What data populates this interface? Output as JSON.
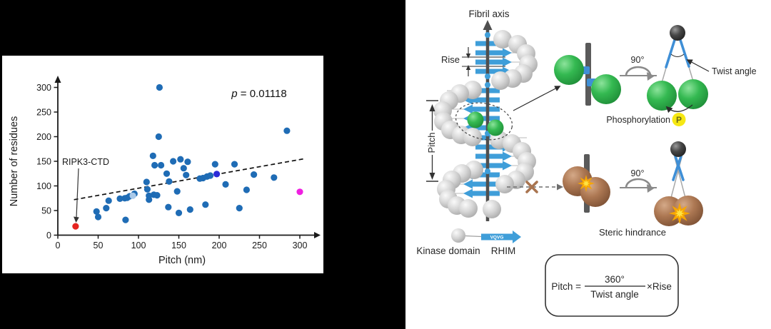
{
  "chart_data": {
    "type": "scatter",
    "title": "",
    "xlabel": "Pitch (nm)",
    "ylabel": "Number of residues",
    "xticks": [
      0,
      50,
      100,
      150,
      200,
      250,
      300
    ],
    "yticks": [
      0,
      50,
      100,
      150,
      200,
      250,
      300
    ],
    "xlim": [
      0,
      330
    ],
    "ylim": [
      0,
      330
    ],
    "grid": false,
    "annotation": {
      "italic": "p",
      "text": " = 0.01118"
    },
    "callout": {
      "label": "RIPK3-CTD",
      "points_to": [
        22,
        18
      ]
    },
    "trendline": {
      "x1": 20,
      "y1": 72,
      "x2": 305,
      "y2": 155,
      "style": "dashed"
    },
    "series": [
      {
        "name": "amyloid-proteins",
        "color": "#1f6cb5",
        "points": [
          [
            48,
            48
          ],
          [
            50,
            37
          ],
          [
            60,
            55
          ],
          [
            63,
            70
          ],
          [
            77,
            74
          ],
          [
            83,
            75
          ],
          [
            84,
            31
          ],
          [
            86,
            76
          ],
          [
            89,
            79
          ],
          [
            95,
            84
          ],
          [
            110,
            108
          ],
          [
            111,
            93
          ],
          [
            113,
            72
          ],
          [
            113,
            80
          ],
          [
            118,
            161
          ],
          [
            119,
            82
          ],
          [
            120,
            142
          ],
          [
            123,
            81
          ],
          [
            125,
            200
          ],
          [
            126,
            300
          ],
          [
            128,
            142
          ],
          [
            135,
            125
          ],
          [
            137,
            57
          ],
          [
            138,
            109
          ],
          [
            143,
            150
          ],
          [
            148,
            89
          ],
          [
            150,
            45
          ],
          [
            152,
            154
          ],
          [
            156,
            136
          ],
          [
            159,
            122
          ],
          [
            161,
            149
          ],
          [
            164,
            52
          ],
          [
            176,
            115
          ],
          [
            180,
            116
          ],
          [
            183,
            62
          ],
          [
            185,
            119
          ],
          [
            189,
            121
          ],
          [
            195,
            144
          ],
          [
            208,
            103
          ],
          [
            219,
            144
          ],
          [
            225,
            55
          ],
          [
            234,
            92
          ],
          [
            243,
            123
          ],
          [
            268,
            117
          ],
          [
            284,
            212
          ]
        ]
      },
      {
        "name": "ripk3-ctd",
        "color": "#e62420",
        "points": [
          [
            22,
            18
          ]
        ]
      },
      {
        "name": "highlight-light-blue",
        "color": "#a9c9e9",
        "points": [
          [
            93,
            80
          ]
        ]
      },
      {
        "name": "highlight-dark-blue",
        "color": "#2b2bd8",
        "points": [
          [
            197,
            124
          ]
        ]
      },
      {
        "name": "highlight-magenta",
        "color": "#ef1fe1",
        "points": [
          [
            300,
            88
          ]
        ]
      }
    ]
  },
  "diagram": {
    "fibril_axis": "Fibril axis",
    "rise": "Rise",
    "pitch": "Pitch",
    "kinase_domain": "Kinase domain",
    "rhim": "RHIM",
    "vqvg": "VQVG",
    "rot_top": "90°",
    "rot_bottom": "90°",
    "twist_angle": "Twist angle",
    "phosphorylation": "Phosphorylation",
    "phospho_badge": "P",
    "steric_hindrance": "Steric hindrance",
    "formula_lhs": "Pitch =",
    "formula_numerator": "360°",
    "formula_denominator": "Twist angle",
    "formula_rhs": "×Rise",
    "colors": {
      "rhim_blue": "#3f9ed9",
      "sphere_gray": "#d5d5d5",
      "green": "#2fb44c",
      "brown": "#a9744f",
      "phospho_yellow": "#f6e813",
      "star_orange": "#f7a600"
    }
  }
}
